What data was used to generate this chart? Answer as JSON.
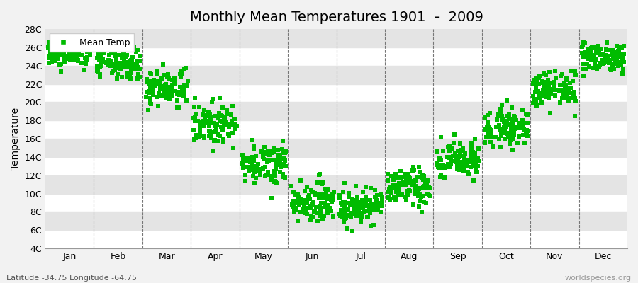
{
  "title": "Monthly Mean Temperatures 1901  -  2009",
  "ylabel": "Temperature",
  "xlabel_bottom": "Latitude -34.75 Longitude -64.75",
  "watermark": "worldspecies.org",
  "legend_label": "Mean Temp",
  "point_color": "#00bb00",
  "marker": "s",
  "marker_size": 25,
  "background_color": "#f2f2f2",
  "plot_bg_color": "#ffffff",
  "stripe_color": "#e4e4e4",
  "ylim": [
    4,
    28
  ],
  "ytick_labels": [
    "4C",
    "6C",
    "8C",
    "10C",
    "12C",
    "14C",
    "16C",
    "18C",
    "20C",
    "22C",
    "24C",
    "26C",
    "28C"
  ],
  "ytick_values": [
    4,
    6,
    8,
    10,
    12,
    14,
    16,
    18,
    20,
    22,
    24,
    26,
    28
  ],
  "months": [
    "Jan",
    "Feb",
    "Mar",
    "Apr",
    "May",
    "Jun",
    "Jul",
    "Aug",
    "Sep",
    "Oct",
    "Nov",
    "Dec"
  ],
  "mean_temps": [
    25.2,
    24.0,
    21.5,
    17.5,
    13.2,
    9.0,
    8.5,
    10.5,
    13.5,
    17.2,
    21.2,
    24.8
  ],
  "std_temps": [
    0.7,
    0.8,
    1.0,
    1.1,
    1.1,
    1.0,
    1.0,
    1.0,
    1.0,
    1.0,
    1.0,
    0.8
  ],
  "num_years": 109,
  "title_fontsize": 14,
  "label_fontsize": 9,
  "ylabel_fontsize": 10
}
